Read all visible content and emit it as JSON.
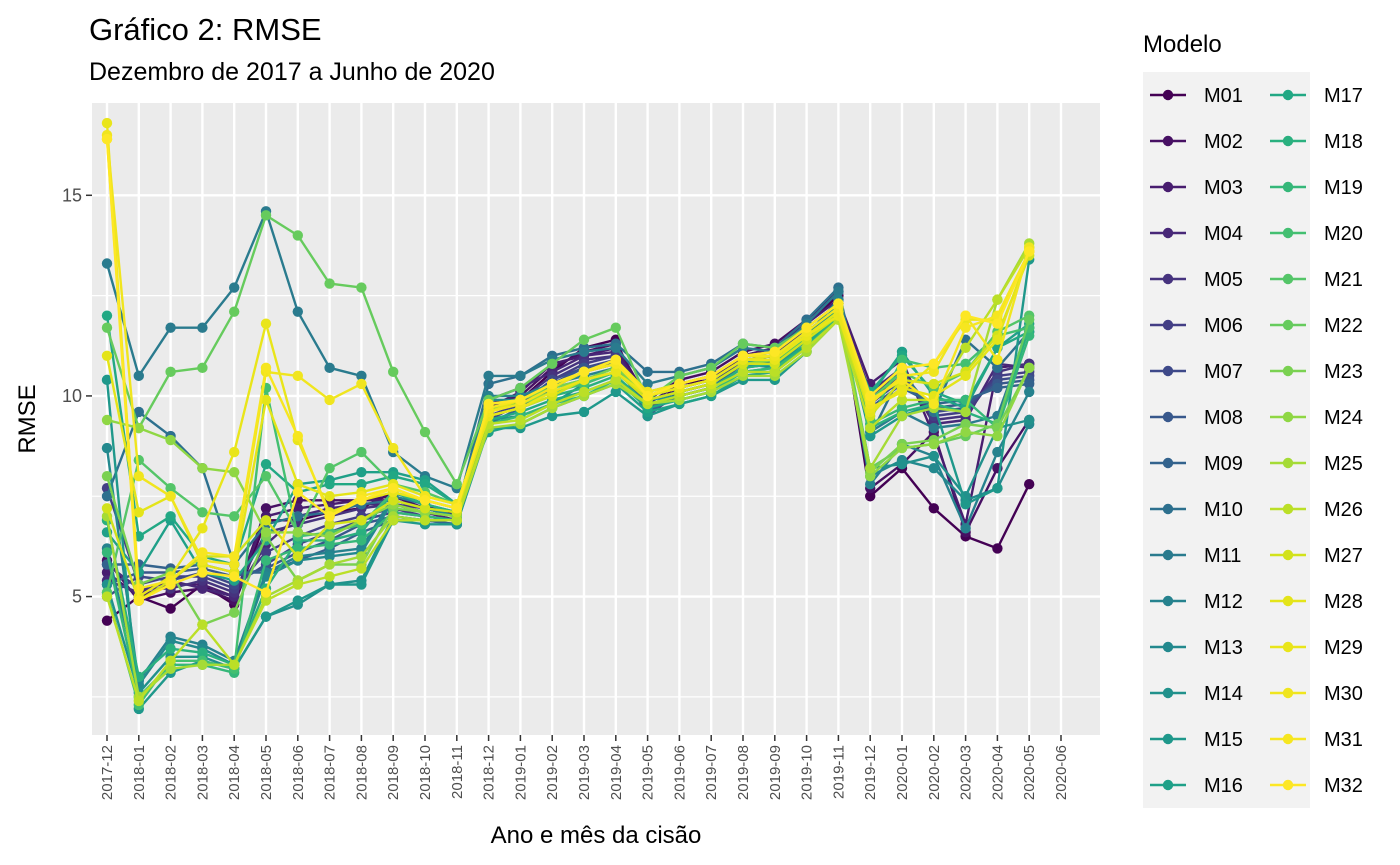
{
  "title": "Gráfico 2: RMSE",
  "subtitle": "Dezembro de 2017 a Junho de 2020",
  "chart_data": {
    "type": "line",
    "title": "Gráfico 2: RMSE",
    "subtitle": "Dezembro de 2017 a Junho de 2020",
    "xlabel": "Ano e mês da cisão",
    "ylabel": "RMSE",
    "ylim": [
      1.55,
      17.3
    ],
    "yticks": [
      5,
      10,
      15
    ],
    "grid": true,
    "legend_position": "right",
    "legend_title": "Modelo",
    "x": [
      "2017-12",
      "2018-01",
      "2018-02",
      "2018-03",
      "2018-04",
      "2018-05",
      "2018-06",
      "2018-07",
      "2018-08",
      "2018-09",
      "2018-10",
      "2018-11",
      "2018-12",
      "2019-01",
      "2019-02",
      "2019-03",
      "2019-04",
      "2019-05",
      "2019-06",
      "2019-07",
      "2019-08",
      "2019-09",
      "2019-10",
      "2019-11",
      "2019-12",
      "2020-01",
      "2020-02",
      "2020-03",
      "2020-04",
      "2020-05",
      "2020-06"
    ],
    "series": [
      {
        "name": "M01",
        "color": "#440154",
        "values": [
          4.4,
          5.0,
          4.7,
          5.3,
          4.8,
          6.9,
          6.9,
          7.1,
          7.2,
          7.6,
          7.3,
          7.0,
          9.6,
          9.9,
          10.6,
          11.2,
          11.4,
          9.6,
          10.3,
          10.4,
          11.0,
          11.2,
          11.8,
          12.5,
          7.5,
          8.2,
          7.2,
          6.5,
          6.2,
          7.8,
          null
        ]
      },
      {
        "name": "M02",
        "color": "#471063",
        "values": [
          5.9,
          4.9,
          5.1,
          5.2,
          4.9,
          7.2,
          7.4,
          7.4,
          7.4,
          7.5,
          7.2,
          7.1,
          9.8,
          10.0,
          10.7,
          11.1,
          11.3,
          9.9,
          10.4,
          10.6,
          11.1,
          11.3,
          11.9,
          12.6,
          7.7,
          8.3,
          9.1,
          6.6,
          8.2,
          9.4,
          null
        ]
      },
      {
        "name": "M03",
        "color": "#481D6F",
        "values": [
          5.6,
          5.0,
          5.3,
          5.3,
          5.0,
          7.0,
          7.2,
          7.3,
          7.4,
          7.4,
          7.2,
          7.0,
          9.7,
          10.1,
          10.8,
          11.0,
          11.2,
          9.8,
          10.3,
          10.5,
          11.0,
          11.2,
          11.8,
          12.4,
          10.3,
          10.9,
          9.0,
          6.8,
          10.7,
          10.8,
          null
        ]
      },
      {
        "name": "M04",
        "color": "#482878",
        "values": [
          5.4,
          5.1,
          5.4,
          5.2,
          5.0,
          6.3,
          7.0,
          7.2,
          7.3,
          7.3,
          7.1,
          6.9,
          9.9,
          10.2,
          10.6,
          11.0,
          11.1,
          9.7,
          10.2,
          10.4,
          11.0,
          11.1,
          11.7,
          12.3,
          10.1,
          10.7,
          9.3,
          9.4,
          10.8,
          10.7,
          null
        ]
      },
      {
        "name": "M05",
        "color": "#46337E",
        "values": [
          5.8,
          5.2,
          5.2,
          5.4,
          5.1,
          6.6,
          6.8,
          7.0,
          7.2,
          7.3,
          7.2,
          7.0,
          9.6,
          9.9,
          10.5,
          10.9,
          11.0,
          9.6,
          10.2,
          10.4,
          10.9,
          11.0,
          11.7,
          12.3,
          10.0,
          10.6,
          9.4,
          9.5,
          10.6,
          10.8,
          null
        ]
      },
      {
        "name": "M06",
        "color": "#433E85",
        "values": [
          7.7,
          5.3,
          5.5,
          5.5,
          5.2,
          6.1,
          6.5,
          6.8,
          7.0,
          7.2,
          7.0,
          6.9,
          9.5,
          9.8,
          10.4,
          10.8,
          11.0,
          9.5,
          10.1,
          10.3,
          10.9,
          11.0,
          11.6,
          12.2,
          9.9,
          10.5,
          9.5,
          9.6,
          10.5,
          10.6,
          null
        ]
      },
      {
        "name": "M07",
        "color": "#3E4989",
        "values": [
          5.0,
          5.5,
          5.4,
          5.6,
          5.3,
          5.8,
          6.3,
          6.6,
          6.9,
          7.1,
          7.0,
          6.9,
          9.4,
          9.8,
          10.4,
          10.7,
          10.9,
          9.6,
          10.1,
          10.3,
          10.8,
          10.9,
          11.5,
          12.2,
          9.8,
          10.4,
          9.6,
          9.7,
          10.4,
          10.5,
          null
        ]
      },
      {
        "name": "M08",
        "color": "#38588C",
        "values": [
          5.3,
          5.6,
          5.6,
          5.7,
          5.5,
          5.7,
          6.1,
          6.4,
          6.8,
          7.0,
          6.9,
          6.8,
          9.5,
          9.7,
          10.3,
          10.7,
          10.8,
          9.6,
          10.0,
          10.2,
          10.8,
          10.9,
          11.5,
          12.1,
          9.7,
          10.3,
          9.7,
          9.8,
          10.3,
          10.4,
          null
        ]
      },
      {
        "name": "M09",
        "color": "#33638D",
        "values": [
          5.8,
          5.8,
          5.7,
          5.8,
          5.6,
          5.6,
          5.9,
          6.2,
          6.6,
          6.9,
          6.9,
          6.8,
          9.3,
          9.7,
          10.2,
          10.6,
          10.8,
          9.6,
          10.0,
          10.2,
          10.7,
          10.8,
          11.4,
          12.1,
          9.6,
          10.2,
          9.8,
          9.9,
          10.2,
          10.3,
          null
        ]
      },
      {
        "name": "M10",
        "color": "#2D708E",
        "values": [
          7.5,
          9.6,
          9.0,
          8.2,
          5.8,
          6.8,
          7.0,
          7.1,
          7.3,
          7.4,
          7.2,
          7.1,
          10.3,
          10.5,
          11.0,
          11.2,
          11.3,
          10.6,
          10.6,
          10.8,
          11.3,
          11.2,
          11.9,
          12.7,
          9.0,
          10.6,
          9.6,
          11.4,
          10.7,
          11.6,
          null
        ]
      },
      {
        "name": "M11",
        "color": "#2A7B8E",
        "values": [
          13.3,
          10.5,
          11.7,
          11.7,
          12.7,
          14.6,
          12.1,
          10.7,
          10.5,
          8.6,
          8.0,
          7.7,
          10.5,
          10.5,
          10.9,
          11.1,
          11.2,
          10.3,
          10.5,
          10.7,
          11.2,
          11.1,
          11.8,
          12.6,
          9.1,
          9.6,
          9.2,
          9.3,
          9.5,
          11.7,
          null
        ]
      },
      {
        "name": "M12",
        "color": "#26828E",
        "values": [
          6.2,
          2.9,
          4.0,
          3.8,
          3.4,
          5.6,
          6.0,
          6.1,
          6.2,
          7.5,
          7.3,
          7.1,
          10.0,
          10.0,
          10.3,
          10.5,
          10.7,
          10.0,
          10.2,
          10.4,
          10.9,
          10.8,
          11.5,
          12.4,
          7.8,
          8.8,
          8.5,
          6.7,
          8.6,
          10.1,
          null
        ]
      },
      {
        "name": "M13",
        "color": "#23898E",
        "values": [
          8.7,
          2.8,
          3.9,
          3.7,
          3.3,
          5.5,
          5.9,
          6.0,
          6.1,
          7.4,
          7.2,
          7.0,
          9.9,
          9.9,
          10.2,
          10.4,
          10.6,
          9.9,
          10.1,
          10.3,
          10.8,
          10.7,
          11.4,
          12.3,
          8.0,
          8.4,
          8.2,
          7.4,
          7.7,
          9.3,
          null
        ]
      },
      {
        "name": "M14",
        "color": "#21918C",
        "values": [
          5.3,
          2.6,
          3.5,
          3.5,
          3.2,
          4.5,
          4.8,
          5.3,
          5.4,
          7.0,
          6.9,
          6.9,
          9.4,
          9.5,
          9.8,
          10.3,
          10.6,
          9.9,
          10.0,
          10.2,
          10.6,
          10.6,
          11.3,
          12.2,
          8.2,
          8.3,
          8.5,
          7.5,
          9.2,
          9.4,
          null
        ]
      },
      {
        "name": "M15",
        "color": "#1F988B",
        "values": [
          10.4,
          2.2,
          3.1,
          3.4,
          3.2,
          4.5,
          4.9,
          5.3,
          5.3,
          6.9,
          6.8,
          6.8,
          9.2,
          9.2,
          9.5,
          9.6,
          10.1,
          9.5,
          9.8,
          10.0,
          10.4,
          10.4,
          11.1,
          12.3,
          9.0,
          9.5,
          9.8,
          7.3,
          7.7,
          13.4,
          null
        ]
      },
      {
        "name": "M16",
        "color": "#1FA088",
        "values": [
          6.6,
          5.6,
          6.9,
          5.6,
          5.4,
          6.4,
          7.8,
          7.9,
          8.1,
          8.1,
          7.9,
          7.3,
          9.1,
          9.3,
          9.7,
          10.0,
          10.3,
          9.6,
          9.8,
          10.0,
          10.5,
          10.6,
          11.2,
          12.0,
          10.0,
          11.1,
          10.0,
          9.7,
          11.2,
          11.8,
          null
        ]
      },
      {
        "name": "M17",
        "color": "#22A884",
        "values": [
          12.0,
          6.5,
          7.0,
          6.0,
          5.8,
          8.3,
          7.6,
          7.8,
          7.8,
          8.0,
          7.8,
          7.3,
          9.4,
          9.6,
          9.9,
          10.1,
          10.4,
          9.7,
          9.9,
          10.1,
          10.6,
          10.7,
          11.3,
          12.0,
          10.1,
          11.0,
          10.1,
          9.8,
          11.2,
          11.6,
          null
        ]
      },
      {
        "name": "M18",
        "color": "#2AB07F",
        "values": [
          6.9,
          3.0,
          3.7,
          3.6,
          3.3,
          5.2,
          6.4,
          6.4,
          6.6,
          7.6,
          7.3,
          7.1,
          9.5,
          9.7,
          10.0,
          10.2,
          10.5,
          9.8,
          10.0,
          10.2,
          10.7,
          10.8,
          11.4,
          12.1,
          9.2,
          9.6,
          9.8,
          9.6,
          9.3,
          11.7,
          null
        ]
      },
      {
        "name": "M19",
        "color": "#35B779",
        "values": [
          6.1,
          2.5,
          3.3,
          3.3,
          3.1,
          5.9,
          6.2,
          6.3,
          6.4,
          7.1,
          7.0,
          6.9,
          9.3,
          9.5,
          9.8,
          10.0,
          10.4,
          9.8,
          9.9,
          10.1,
          10.6,
          10.7,
          11.2,
          12.0,
          9.3,
          9.7,
          9.9,
          9.9,
          9.2,
          11.5,
          null
        ]
      },
      {
        "name": "M20",
        "color": "#43BF71",
        "values": [
          5.1,
          2.3,
          3.4,
          3.4,
          3.2,
          10.2,
          6.5,
          6.6,
          6.8,
          7.6,
          7.4,
          7.2,
          9.7,
          9.8,
          10.1,
          10.3,
          10.6,
          9.9,
          10.1,
          10.3,
          10.8,
          10.9,
          11.4,
          12.1,
          9.4,
          10.9,
          10.7,
          10.8,
          11.5,
          11.7,
          null
        ]
      },
      {
        "name": "M21",
        "color": "#54C568",
        "values": [
          5.1,
          8.4,
          7.7,
          7.1,
          7.0,
          8.0,
          6.6,
          8.2,
          8.6,
          7.8,
          7.6,
          7.3,
          9.6,
          9.9,
          10.3,
          10.6,
          10.9,
          10.1,
          10.3,
          10.5,
          11.0,
          11.0,
          11.6,
          12.2,
          9.9,
          10.6,
          10.2,
          10.6,
          11.6,
          12.0,
          null
        ]
      },
      {
        "name": "M22",
        "color": "#66CB5D",
        "values": [
          11.7,
          9.2,
          10.6,
          10.7,
          12.1,
          14.5,
          14.0,
          12.8,
          12.7,
          10.6,
          9.1,
          7.8,
          9.9,
          10.2,
          10.8,
          11.4,
          11.7,
          9.9,
          10.5,
          10.7,
          11.3,
          11.2,
          11.7,
          12.3,
          8.2,
          8.7,
          8.8,
          9.0,
          9.3,
          11.9,
          null
        ]
      },
      {
        "name": "M23",
        "color": "#7AD151",
        "values": [
          8.0,
          5.3,
          5.6,
          4.3,
          4.6,
          6.5,
          5.4,
          5.8,
          5.8,
          7.2,
          7.1,
          7.0,
          9.8,
          9.9,
          10.2,
          10.4,
          10.7,
          10.0,
          10.2,
          10.4,
          10.9,
          10.9,
          11.5,
          12.1,
          8.1,
          8.8,
          8.9,
          9.3,
          9.2,
          10.7,
          null
        ]
      },
      {
        "name": "M24",
        "color": "#8FD744",
        "values": [
          9.4,
          9.2,
          8.9,
          8.2,
          8.1,
          6.6,
          6.6,
          6.5,
          6.9,
          7.3,
          7.1,
          7.0,
          9.7,
          9.8,
          10.1,
          10.4,
          10.6,
          9.9,
          10.1,
          10.3,
          10.8,
          10.9,
          11.5,
          12.1,
          8.0,
          8.7,
          8.8,
          9.1,
          9.0,
          10.7,
          null
        ]
      },
      {
        "name": "M25",
        "color": "#A5DB36",
        "values": [
          7.0,
          2.5,
          3.2,
          3.3,
          3.3,
          5.0,
          5.4,
          5.8,
          6.0,
          7.0,
          6.9,
          6.9,
          9.2,
          9.3,
          9.7,
          10.0,
          10.3,
          9.8,
          9.9,
          10.1,
          10.5,
          10.5,
          11.1,
          11.9,
          8.2,
          9.5,
          9.7,
          9.6,
          12.4,
          13.8,
          null
        ]
      },
      {
        "name": "M26",
        "color": "#BBDF27",
        "values": [
          5.0,
          2.4,
          3.4,
          4.3,
          3.3,
          4.9,
          5.3,
          5.5,
          5.7,
          6.9,
          6.9,
          6.9,
          9.3,
          9.4,
          9.8,
          10.1,
          10.4,
          9.8,
          10.0,
          10.2,
          10.6,
          10.6,
          11.2,
          11.9,
          9.2,
          9.9,
          9.9,
          11.2,
          12.4,
          13.7,
          null
        ]
      },
      {
        "name": "M27",
        "color": "#D2E21B",
        "values": [
          7.2,
          4.9,
          5.4,
          6.0,
          6.0,
          6.9,
          6.0,
          6.8,
          6.9,
          7.4,
          7.2,
          7.1,
          9.5,
          9.7,
          10.0,
          10.4,
          10.6,
          9.9,
          10.1,
          10.3,
          10.8,
          10.8,
          11.4,
          12.0,
          9.5,
          10.4,
          10.3,
          10.6,
          11.5,
          13.5,
          null
        ]
      },
      {
        "name": "M28",
        "color": "#E4E419",
        "values": [
          11.0,
          7.1,
          7.5,
          5.8,
          5.6,
          9.9,
          7.8,
          7.5,
          7.6,
          7.8,
          7.5,
          7.3,
          9.6,
          9.9,
          10.3,
          10.6,
          10.8,
          10.0,
          10.2,
          10.4,
          10.9,
          11.0,
          11.5,
          12.1,
          9.6,
          10.2,
          10.0,
          10.5,
          11.4,
          13.6,
          null
        ]
      },
      {
        "name": "M29",
        "color": "#E9E51A",
        "values": [
          16.8,
          5.0,
          5.5,
          6.7,
          8.6,
          11.8,
          8.9,
          7.1,
          7.4,
          7.6,
          7.4,
          7.2,
          9.5,
          9.7,
          10.1,
          10.4,
          10.6,
          10.0,
          10.2,
          10.4,
          10.9,
          10.9,
          11.5,
          12.0,
          9.7,
          10.1,
          10.8,
          11.9,
          11.9,
          13.6,
          null
        ]
      },
      {
        "name": "M30",
        "color": "#F0E51E",
        "values": [
          16.5,
          8.0,
          7.5,
          5.9,
          5.8,
          10.6,
          10.5,
          9.9,
          10.3,
          8.7,
          7.5,
          7.3,
          9.6,
          9.8,
          10.2,
          10.6,
          10.9,
          10.1,
          10.3,
          10.5,
          11.0,
          11.0,
          11.6,
          12.2,
          9.8,
          10.5,
          10.6,
          12.0,
          10.9,
          13.7,
          null
        ]
      },
      {
        "name": "M31",
        "color": "#F6E620",
        "values": [
          16.4,
          5.2,
          5.4,
          6.1,
          6.0,
          10.7,
          9.0,
          7.0,
          7.5,
          7.7,
          7.4,
          7.2,
          9.7,
          9.9,
          10.3,
          10.6,
          10.8,
          10.0,
          10.3,
          10.5,
          11.0,
          11.1,
          11.7,
          12.3,
          9.9,
          10.4,
          9.8,
          11.7,
          12.0,
          13.6,
          null
        ]
      },
      {
        "name": "M32",
        "color": "#FDE725",
        "values": [
          16.4,
          4.9,
          5.3,
          5.6,
          5.5,
          5.1,
          7.6,
          7.0,
          7.4,
          7.7,
          7.4,
          7.2,
          9.8,
          9.9,
          10.3,
          10.6,
          10.9,
          10.0,
          10.3,
          10.5,
          11.0,
          11.1,
          11.7,
          12.3,
          10.0,
          10.7,
          10.8,
          12.0,
          11.8,
          13.6,
          null
        ]
      }
    ]
  }
}
